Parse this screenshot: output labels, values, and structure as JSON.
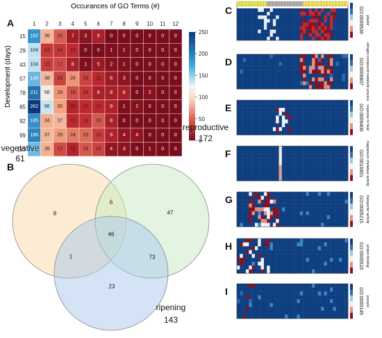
{
  "panel_letters": {
    "A": "A",
    "B": "B",
    "C": "C",
    "D": "D",
    "E": "E",
    "F": "F",
    "G": "G",
    "H": "H",
    "I": "I"
  },
  "colors": {
    "high": "#0b3a79",
    "mid_high": "#3a8fd0",
    "mid": "#dff0fb",
    "mid_low": "#f0b79a",
    "low": "#7a0d1b"
  },
  "chart_data": [
    {
      "type": "heatmap",
      "title": "Occurances of GO Terms (#)",
      "xlabel": "",
      "ylabel": "Development (days)",
      "x": [
        "1",
        "2",
        "3",
        "4",
        "5",
        "6",
        "7",
        "8",
        "9",
        "10",
        "11",
        "12"
      ],
      "y": [
        "15",
        "29",
        "43",
        "57",
        "78",
        "85",
        "92",
        "99",
        "113"
      ],
      "values": [
        [
          182,
          36,
          20,
          7,
          3,
          8,
          0,
          0,
          0,
          0,
          0,
          0
        ],
        [
          104,
          14,
          14,
          12,
          0,
          0,
          1,
          1,
          0,
          0,
          0,
          0
        ],
        [
          104,
          15,
          17,
          8,
          1,
          5,
          2,
          1,
          0,
          0,
          0,
          0
        ],
        [
          148,
          38,
          16,
          28,
          16,
          11,
          6,
          3,
          0,
          0,
          0,
          0
        ],
        [
          211,
          56,
          28,
          18,
          14,
          8,
          8,
          8,
          0,
          2,
          0,
          0
        ],
        [
          262,
          96,
          30,
          10,
          12,
          12,
          9,
          1,
          2,
          0,
          0,
          0
        ],
        [
          185,
          34,
          37,
          12,
          13,
          19,
          8,
          0,
          0,
          0,
          0,
          0
        ],
        [
          196,
          37,
          29,
          24,
          22,
          15,
          9,
          4,
          4,
          0,
          0,
          0
        ],
        [
          145,
          35,
          17,
          10,
          19,
          16,
          4,
          3,
          0,
          1,
          0,
          0
        ]
      ],
      "colorbar": {
        "min": 0,
        "max": 250,
        "ticks": [
          "250",
          "200",
          "150",
          "100",
          "50",
          "0"
        ]
      }
    },
    {
      "type": "venn",
      "sets": [
        {
          "name": "vegetative",
          "total": "61"
        },
        {
          "name": "reproductive",
          "total": "172"
        },
        {
          "name": "ripening",
          "total": "143"
        }
      ],
      "regions": {
        "vegetative_only": "8",
        "reproductive_only": "47",
        "ripening_only": "23",
        "veg_rep": "6",
        "veg_rip": "1",
        "rep_rip": "73",
        "all": "46"
      }
    },
    {
      "type": "heatmap",
      "panels": [
        {
          "letter": "C",
          "go_id": "GO:0009536",
          "desc": "plastid"
        },
        {
          "letter": "D",
          "go_id": "GO:0006807",
          "desc": "nitrogen compound metabolic process"
        },
        {
          "letter": "E",
          "go_id": "GO:0009408",
          "desc": "response to heat"
        },
        {
          "letter": "F",
          "go_id": "GO:0016851",
          "desc": "magnesium chelatase activity"
        },
        {
          "letter": "G",
          "go_id": "GO:0005215",
          "desc": "transporter activity"
        },
        {
          "letter": "H",
          "go_id": "GO:0005515",
          "desc": "protein binding"
        },
        {
          "letter": "I",
          "go_id": "GO:0000145",
          "desc": "exocyst"
        }
      ]
    }
  ]
}
